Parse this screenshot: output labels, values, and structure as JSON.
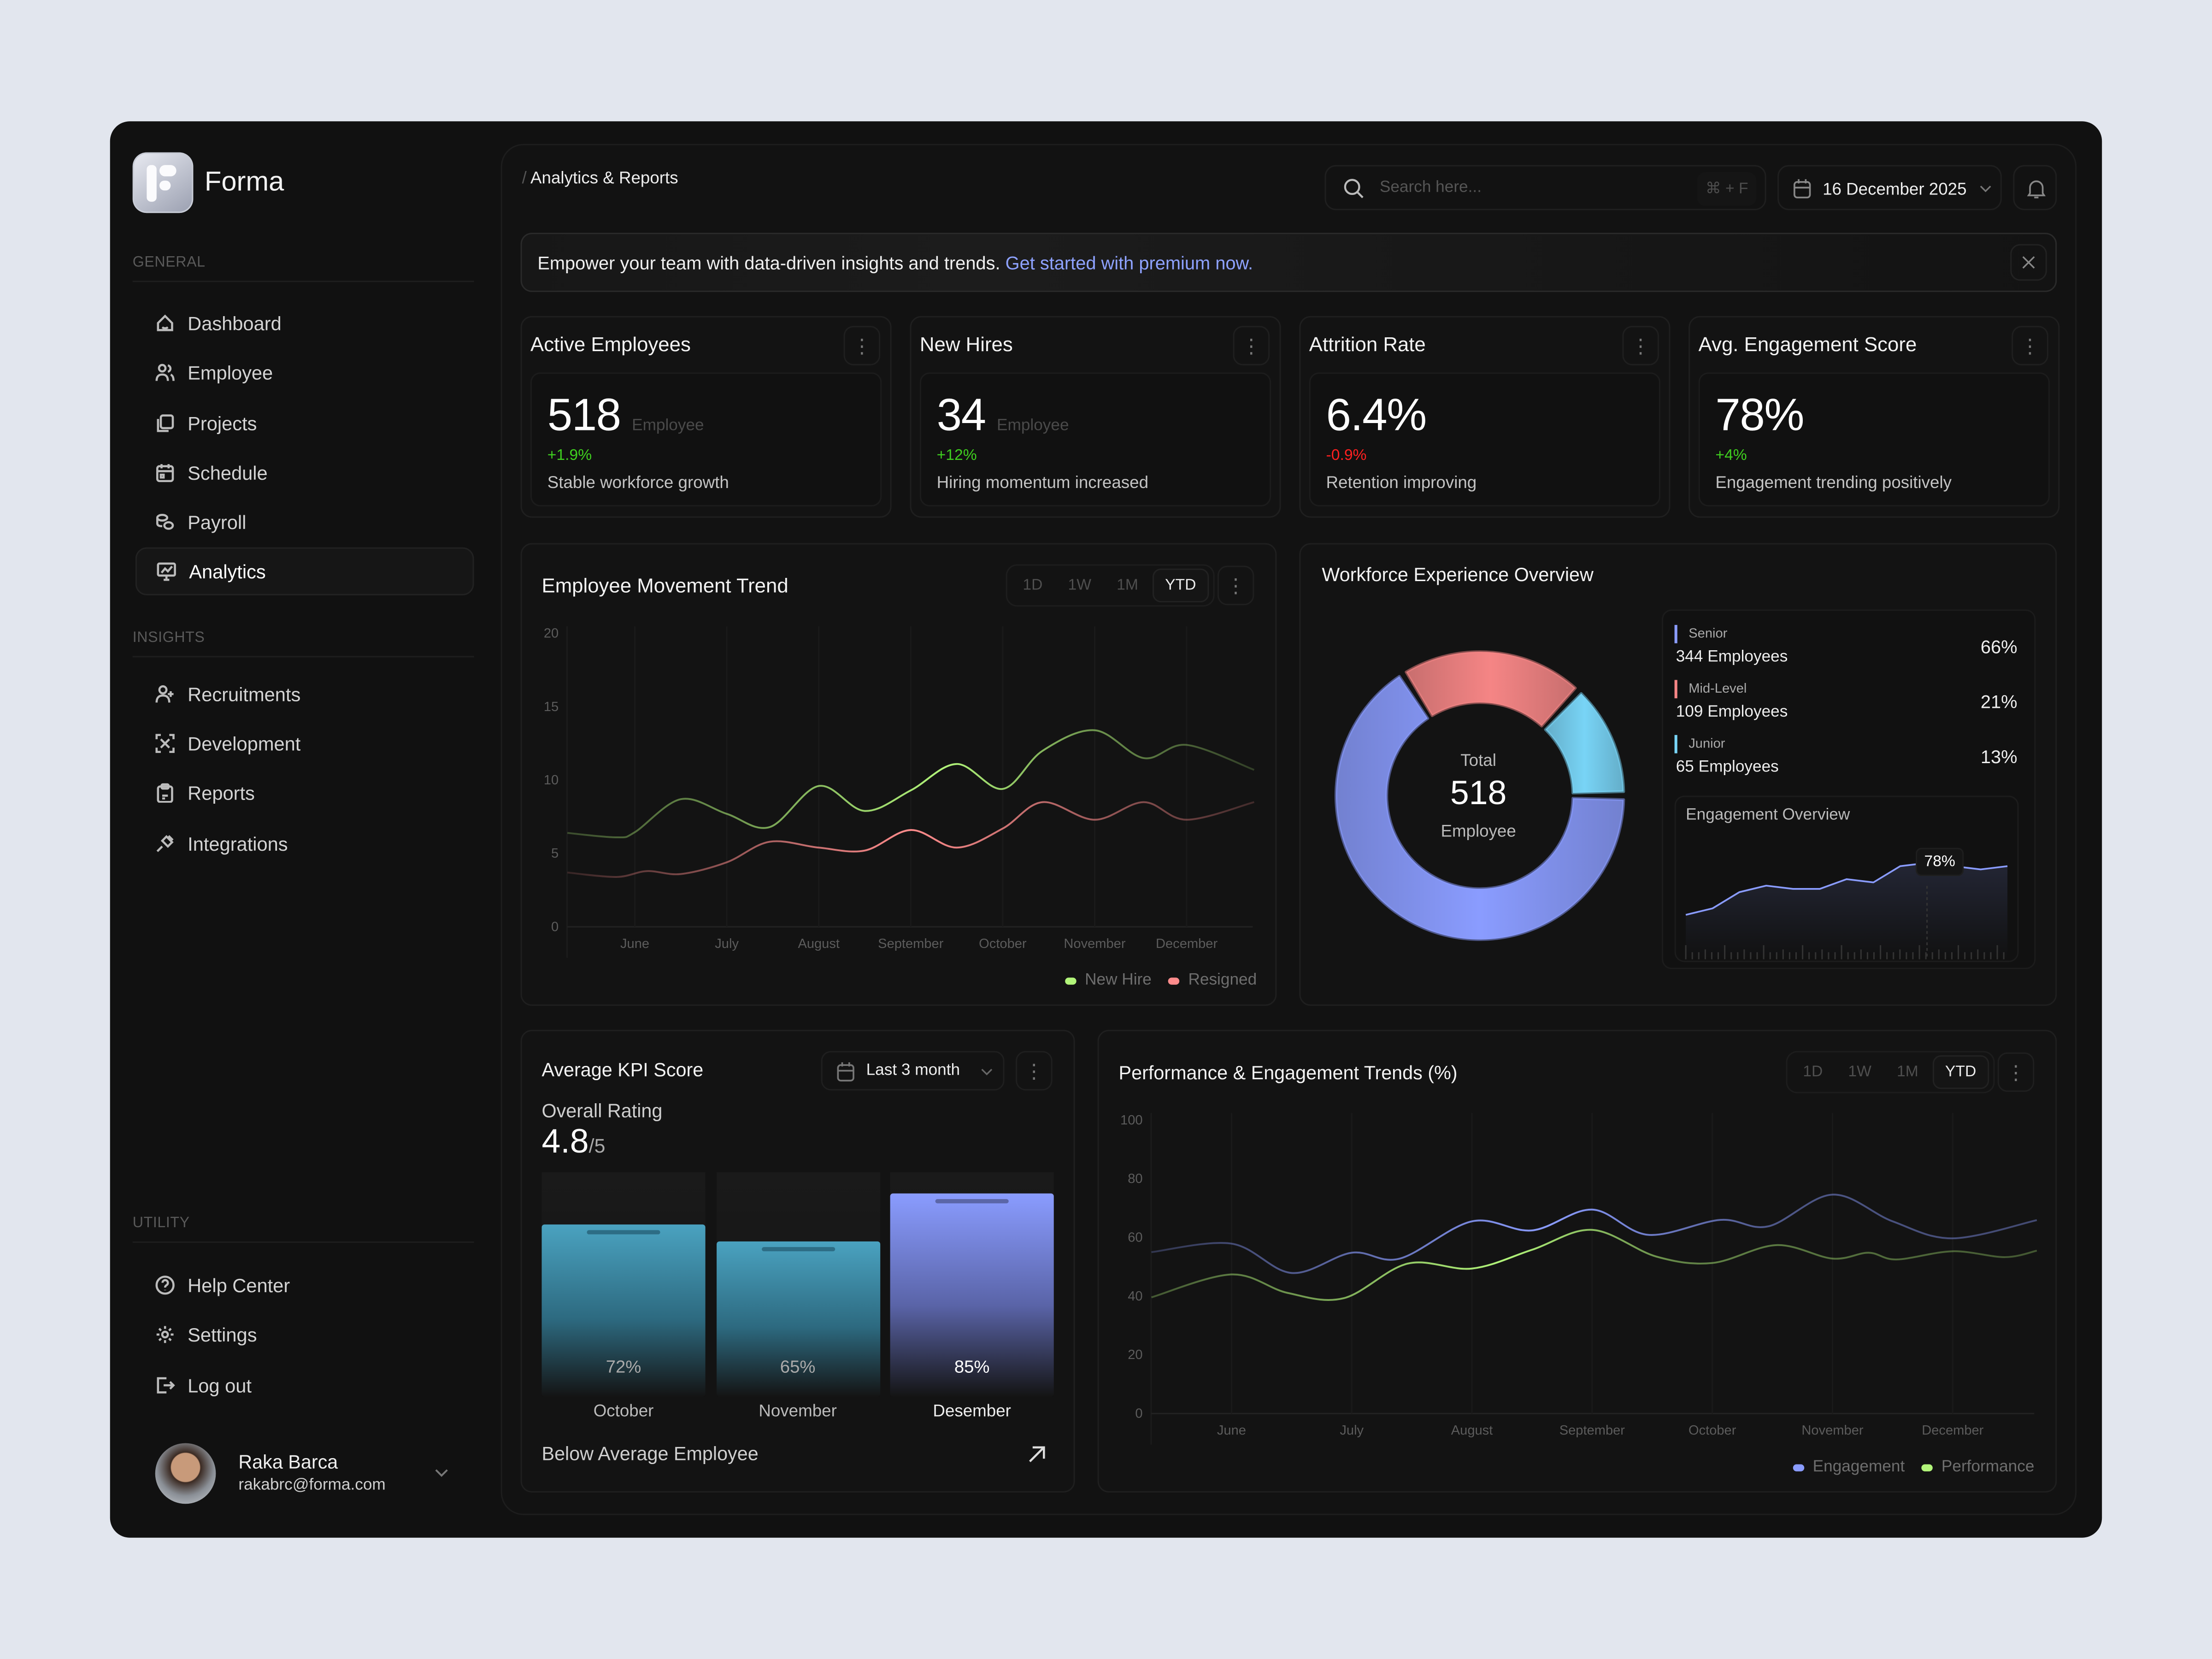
{
  "app": {
    "name": "Forma"
  },
  "sidebar": {
    "general_label": "GENERAL",
    "general": [
      {
        "label": "Dashboard",
        "icon": "home-icon"
      },
      {
        "label": "Employee",
        "icon": "users-icon"
      },
      {
        "label": "Projects",
        "icon": "copy-icon"
      },
      {
        "label": "Schedule",
        "icon": "calendar-icon"
      },
      {
        "label": "Payroll",
        "icon": "coins-icon"
      },
      {
        "label": "Analytics",
        "icon": "chart-icon",
        "active": true
      }
    ],
    "insights_label": "INSIGHTS",
    "insights": [
      {
        "label": "Recruitments",
        "icon": "user-plus-icon"
      },
      {
        "label": "Development",
        "icon": "expand-icon"
      },
      {
        "label": "Reports",
        "icon": "clipboard-icon"
      },
      {
        "label": "Integrations",
        "icon": "plug-icon"
      }
    ],
    "utility_label": "UTILITY",
    "utility": [
      {
        "label": "Help Center",
        "icon": "help-icon"
      },
      {
        "label": "Settings",
        "icon": "gear-icon"
      },
      {
        "label": "Log out",
        "icon": "logout-icon"
      }
    ],
    "user": {
      "name": "Raka Barca",
      "email": "rakabrc@forma.com"
    }
  },
  "header": {
    "breadcrumb_sep": "/",
    "breadcrumb": "Analytics & Reports",
    "search_placeholder": "Search here...",
    "search_shortcut": "⌘ + F",
    "date": "16 December 2025"
  },
  "banner": {
    "text": "Empower your team with data-driven insights and trends.",
    "link": "Get started with premium now.",
    "link_color": "#8ea2ff"
  },
  "kpis": [
    {
      "title": "Active Employees",
      "value": "518",
      "unit": "Employee",
      "delta": "+1.9%",
      "delta_color": "#3fcf1f",
      "note": "Stable workforce growth"
    },
    {
      "title": "New Hires",
      "value": "34",
      "unit": "Employee",
      "delta": "+12%",
      "delta_color": "#3fcf1f",
      "note": "Hiring momentum increased"
    },
    {
      "title": "Attrition Rate",
      "value": "6.4%",
      "unit": "",
      "delta": "-0.9%",
      "delta_color": "#ff2020",
      "note": "Retention improving"
    },
    {
      "title": "Avg. Engagement Score",
      "value": "78%",
      "unit": "",
      "delta": "+4%",
      "delta_color": "#3fcf1f",
      "note": "Engagement trending positively"
    }
  ],
  "ranges": [
    "1D",
    "1W",
    "1M",
    "YTD"
  ],
  "selected_range": "YTD",
  "workforce": {
    "title": "Workforce Experience Overview",
    "total_label": "Total",
    "total": "518",
    "total_unit": "Employee",
    "levels": [
      {
        "name": "Senior",
        "count": "344 Employees",
        "pct": "66%",
        "value": 66,
        "color": "#8a9cff"
      },
      {
        "name": "Mid-Level",
        "count": "109 Employees",
        "pct": "21%",
        "value": 21,
        "color": "#f58585"
      },
      {
        "name": "Junior",
        "count": "65 Employees",
        "pct": "13%",
        "value": 13,
        "color": "#78d4f6"
      }
    ],
    "engagement_title": "Engagement Overview",
    "engagement_tooltip": "78%",
    "engagement_values": [
      60,
      62,
      67,
      69,
      68,
      68,
      71,
      70,
      75,
      76,
      75,
      74,
      75
    ]
  },
  "kpi_score": {
    "title": "Average KPI Score",
    "period": "Last 3 month",
    "rating_label": "Overall Rating",
    "rating": "4.8",
    "rating_max": "/5",
    "bars": [
      {
        "month": "October",
        "label": "72%",
        "value": 72
      },
      {
        "month": "November",
        "label": "65%",
        "value": 65
      },
      {
        "month": "Desember",
        "label": "85%",
        "value": 85
      }
    ],
    "footer": "Below Average Employee"
  },
  "chart_data": [
    {
      "type": "line",
      "title": "Employee Movement Trend",
      "ylim": [
        0,
        20
      ],
      "yticks": [
        "0",
        "5",
        "10",
        "15",
        "20"
      ],
      "categories": [
        "June",
        "July",
        "August",
        "September",
        "October",
        "November",
        "December"
      ],
      "legend_position": "bottom-right",
      "grid": true,
      "series": [
        {
          "name": "New Hire",
          "color": "#b2f57a",
          "x": [
            "2025-05-09",
            "2025-05-25",
            "2025-06-01",
            "2025-06-16",
            "2025-07-01",
            "2025-07-15",
            "2025-08-01",
            "2025-08-16",
            "2025-09-01",
            "2025-09-16",
            "2025-10-01",
            "2025-10-14",
            "2025-11-01",
            "2025-11-17",
            "2025-12-01",
            "2025-12-23"
          ],
          "y": [
            6.4,
            6.1,
            6.45,
            8.7,
            7.7,
            6.8,
            9.6,
            7.9,
            9.3,
            11.1,
            9.4,
            12.0,
            13.4,
            11.5,
            12.4,
            10.7
          ]
        },
        {
          "name": "Resigned",
          "color": "#ff8c8c",
          "x": [
            "2025-05-09",
            "2025-05-25",
            "2025-06-05",
            "2025-06-16",
            "2025-07-01",
            "2025-07-15",
            "2025-08-01",
            "2025-08-16",
            "2025-09-01",
            "2025-09-16",
            "2025-10-01",
            "2025-10-14",
            "2025-11-01",
            "2025-11-17",
            "2025-12-01",
            "2025-12-23"
          ],
          "y": [
            3.7,
            3.4,
            3.8,
            3.6,
            4.4,
            5.8,
            5.4,
            5.2,
            6.6,
            5.4,
            6.7,
            8.5,
            7.3,
            8.5,
            7.3,
            8.5
          ]
        }
      ]
    },
    {
      "type": "line",
      "title": "Performance & Engagement Trends (%)",
      "ylim": [
        0,
        100
      ],
      "yticks": [
        "0",
        "20",
        "40",
        "60",
        "80",
        "100"
      ],
      "categories": [
        "June",
        "July",
        "August",
        "September",
        "October",
        "November",
        "December"
      ],
      "legend_position": "bottom-right",
      "grid": true,
      "series": [
        {
          "name": "Engagement",
          "color": "#8a9cff",
          "x": [
            "2025-05-11",
            "2025-06-01",
            "2025-06-16",
            "2025-07-01",
            "2025-07-13",
            "2025-08-01",
            "2025-08-16",
            "2025-09-01",
            "2025-09-15",
            "2025-10-03",
            "2025-10-15",
            "2025-11-01",
            "2025-11-16",
            "2025-12-01",
            "2025-12-22"
          ],
          "y": [
            55,
            57.9,
            47.9,
            54.8,
            52.8,
            65.5,
            62.4,
            69.5,
            60.9,
            66,
            63.8,
            74.6,
            65.5,
            59.7,
            65.9
          ]
        },
        {
          "name": "Performance",
          "color": "#b2f57a",
          "x": [
            "2025-05-11",
            "2025-06-01",
            "2025-06-15",
            "2025-06-29",
            "2025-07-15",
            "2025-08-01",
            "2025-08-16",
            "2025-09-01",
            "2025-09-17",
            "2025-10-01",
            "2025-10-17",
            "2025-11-01",
            "2025-11-10",
            "2025-11-17",
            "2025-12-01",
            "2025-12-14",
            "2025-12-22"
          ],
          "y": [
            39.6,
            47.4,
            41.1,
            39.3,
            51.1,
            49.4,
            55.8,
            62.6,
            53.5,
            51.3,
            57.4,
            52.8,
            54.8,
            52.5,
            55.3,
            53.3,
            55.5
          ]
        }
      ]
    }
  ]
}
